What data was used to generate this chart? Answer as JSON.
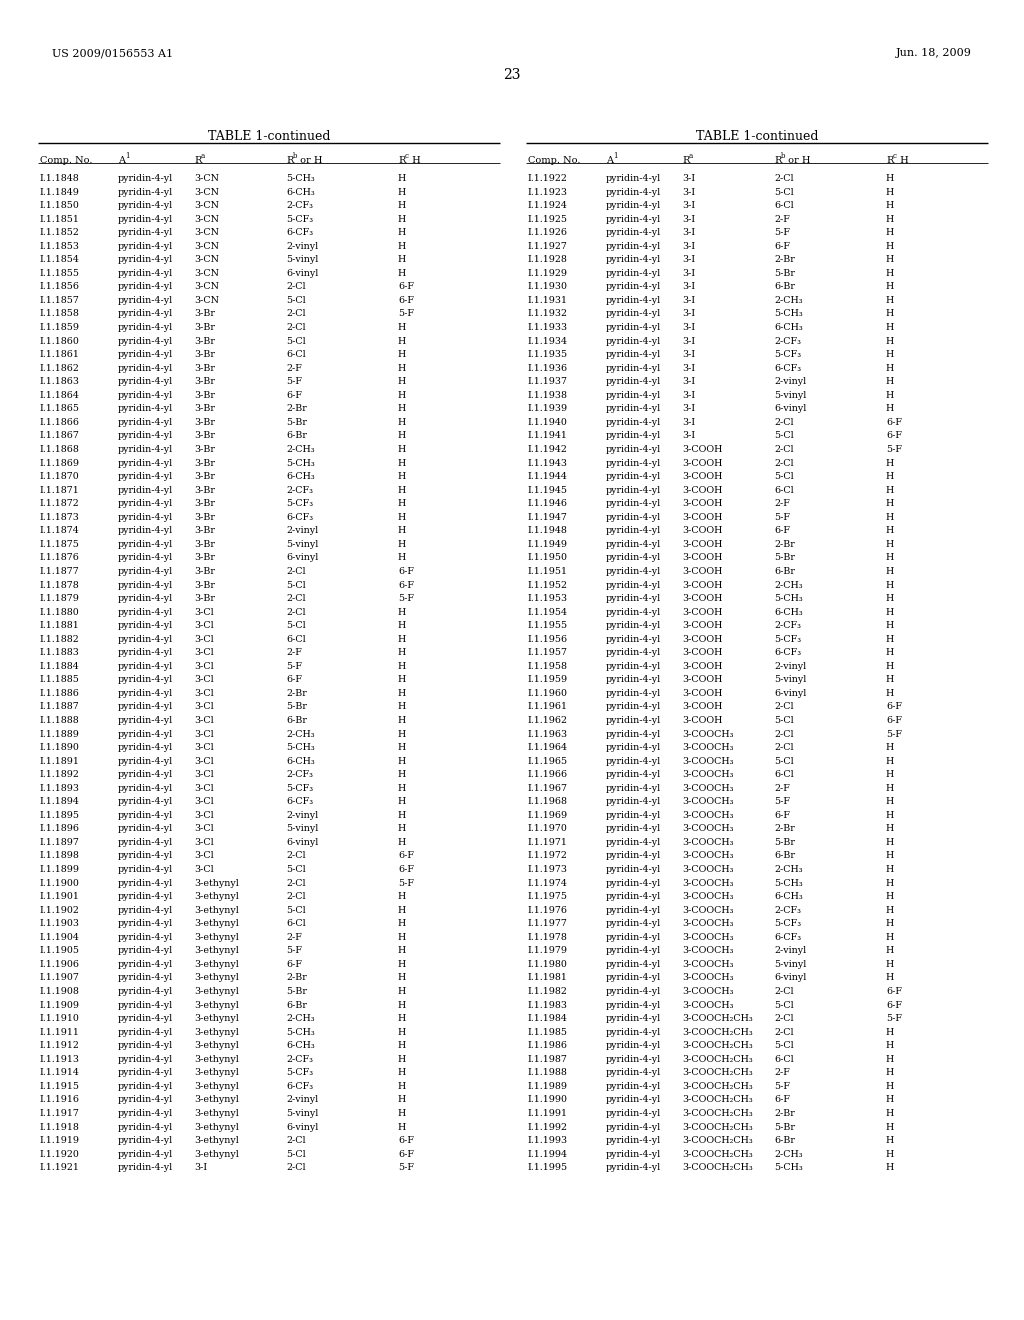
{
  "header_left": "US 2009/0156553 A1",
  "header_right": "Jun. 18, 2009",
  "page_number": "23",
  "table_title": "TABLE 1-continued",
  "background_color": "#ffffff",
  "left_table": [
    [
      "I.1.1848",
      "pyridin-4-yl",
      "3-CN",
      "5-CH₃",
      "H"
    ],
    [
      "I.1.1849",
      "pyridin-4-yl",
      "3-CN",
      "6-CH₃",
      "H"
    ],
    [
      "I.1.1850",
      "pyridin-4-yl",
      "3-CN",
      "2-CF₃",
      "H"
    ],
    [
      "I.1.1851",
      "pyridin-4-yl",
      "3-CN",
      "5-CF₃",
      "H"
    ],
    [
      "I.1.1852",
      "pyridin-4-yl",
      "3-CN",
      "6-CF₃",
      "H"
    ],
    [
      "I.1.1853",
      "pyridin-4-yl",
      "3-CN",
      "2-vinyl",
      "H"
    ],
    [
      "I.1.1854",
      "pyridin-4-yl",
      "3-CN",
      "5-vinyl",
      "H"
    ],
    [
      "I.1.1855",
      "pyridin-4-yl",
      "3-CN",
      "6-vinyl",
      "H"
    ],
    [
      "I.1.1856",
      "pyridin-4-yl",
      "3-CN",
      "2-Cl",
      "6-F"
    ],
    [
      "I.1.1857",
      "pyridin-4-yl",
      "3-CN",
      "5-Cl",
      "6-F"
    ],
    [
      "I.1.1858",
      "pyridin-4-yl",
      "3-Br",
      "2-Cl",
      "5-F"
    ],
    [
      "I.1.1859",
      "pyridin-4-yl",
      "3-Br",
      "2-Cl",
      "H"
    ],
    [
      "I.1.1860",
      "pyridin-4-yl",
      "3-Br",
      "5-Cl",
      "H"
    ],
    [
      "I.1.1861",
      "pyridin-4-yl",
      "3-Br",
      "6-Cl",
      "H"
    ],
    [
      "I.1.1862",
      "pyridin-4-yl",
      "3-Br",
      "2-F",
      "H"
    ],
    [
      "I.1.1863",
      "pyridin-4-yl",
      "3-Br",
      "5-F",
      "H"
    ],
    [
      "I.1.1864",
      "pyridin-4-yl",
      "3-Br",
      "6-F",
      "H"
    ],
    [
      "I.1.1865",
      "pyridin-4-yl",
      "3-Br",
      "2-Br",
      "H"
    ],
    [
      "I.1.1866",
      "pyridin-4-yl",
      "3-Br",
      "5-Br",
      "H"
    ],
    [
      "I.1.1867",
      "pyridin-4-yl",
      "3-Br",
      "6-Br",
      "H"
    ],
    [
      "I.1.1868",
      "pyridin-4-yl",
      "3-Br",
      "2-CH₃",
      "H"
    ],
    [
      "I.1.1869",
      "pyridin-4-yl",
      "3-Br",
      "5-CH₃",
      "H"
    ],
    [
      "I.1.1870",
      "pyridin-4-yl",
      "3-Br",
      "6-CH₃",
      "H"
    ],
    [
      "I.1.1871",
      "pyridin-4-yl",
      "3-Br",
      "2-CF₃",
      "H"
    ],
    [
      "I.1.1872",
      "pyridin-4-yl",
      "3-Br",
      "5-CF₃",
      "H"
    ],
    [
      "I.1.1873",
      "pyridin-4-yl",
      "3-Br",
      "6-CF₃",
      "H"
    ],
    [
      "I.1.1874",
      "pyridin-4-yl",
      "3-Br",
      "2-vinyl",
      "H"
    ],
    [
      "I.1.1875",
      "pyridin-4-yl",
      "3-Br",
      "5-vinyl",
      "H"
    ],
    [
      "I.1.1876",
      "pyridin-4-yl",
      "3-Br",
      "6-vinyl",
      "H"
    ],
    [
      "I.1.1877",
      "pyridin-4-yl",
      "3-Br",
      "2-Cl",
      "6-F"
    ],
    [
      "I.1.1878",
      "pyridin-4-yl",
      "3-Br",
      "5-Cl",
      "6-F"
    ],
    [
      "I.1.1879",
      "pyridin-4-yl",
      "3-Br",
      "2-Cl",
      "5-F"
    ],
    [
      "I.1.1880",
      "pyridin-4-yl",
      "3-Cl",
      "2-Cl",
      "H"
    ],
    [
      "I.1.1881",
      "pyridin-4-yl",
      "3-Cl",
      "5-Cl",
      "H"
    ],
    [
      "I.1.1882",
      "pyridin-4-yl",
      "3-Cl",
      "6-Cl",
      "H"
    ],
    [
      "I.1.1883",
      "pyridin-4-yl",
      "3-Cl",
      "2-F",
      "H"
    ],
    [
      "I.1.1884",
      "pyridin-4-yl",
      "3-Cl",
      "5-F",
      "H"
    ],
    [
      "I.1.1885",
      "pyridin-4-yl",
      "3-Cl",
      "6-F",
      "H"
    ],
    [
      "I.1.1886",
      "pyridin-4-yl",
      "3-Cl",
      "2-Br",
      "H"
    ],
    [
      "I.1.1887",
      "pyridin-4-yl",
      "3-Cl",
      "5-Br",
      "H"
    ],
    [
      "I.1.1888",
      "pyridin-4-yl",
      "3-Cl",
      "6-Br",
      "H"
    ],
    [
      "I.1.1889",
      "pyridin-4-yl",
      "3-Cl",
      "2-CH₃",
      "H"
    ],
    [
      "I.1.1890",
      "pyridin-4-yl",
      "3-Cl",
      "5-CH₃",
      "H"
    ],
    [
      "I.1.1891",
      "pyridin-4-yl",
      "3-Cl",
      "6-CH₃",
      "H"
    ],
    [
      "I.1.1892",
      "pyridin-4-yl",
      "3-Cl",
      "2-CF₃",
      "H"
    ],
    [
      "I.1.1893",
      "pyridin-4-yl",
      "3-Cl",
      "5-CF₃",
      "H"
    ],
    [
      "I.1.1894",
      "pyridin-4-yl",
      "3-Cl",
      "6-CF₃",
      "H"
    ],
    [
      "I.1.1895",
      "pyridin-4-yl",
      "3-Cl",
      "2-vinyl",
      "H"
    ],
    [
      "I.1.1896",
      "pyridin-4-yl",
      "3-Cl",
      "5-vinyl",
      "H"
    ],
    [
      "I.1.1897",
      "pyridin-4-yl",
      "3-Cl",
      "6-vinyl",
      "H"
    ],
    [
      "I.1.1898",
      "pyridin-4-yl",
      "3-Cl",
      "2-Cl",
      "6-F"
    ],
    [
      "I.1.1899",
      "pyridin-4-yl",
      "3-Cl",
      "5-Cl",
      "6-F"
    ],
    [
      "I.1.1900",
      "pyridin-4-yl",
      "3-ethynyl",
      "2-Cl",
      "5-F"
    ],
    [
      "I.1.1901",
      "pyridin-4-yl",
      "3-ethynyl",
      "2-Cl",
      "H"
    ],
    [
      "I.1.1902",
      "pyridin-4-yl",
      "3-ethynyl",
      "5-Cl",
      "H"
    ],
    [
      "I.1.1903",
      "pyridin-4-yl",
      "3-ethynyl",
      "6-Cl",
      "H"
    ],
    [
      "I.1.1904",
      "pyridin-4-yl",
      "3-ethynyl",
      "2-F",
      "H"
    ],
    [
      "I.1.1905",
      "pyridin-4-yl",
      "3-ethynyl",
      "5-F",
      "H"
    ],
    [
      "I.1.1906",
      "pyridin-4-yl",
      "3-ethynyl",
      "6-F",
      "H"
    ],
    [
      "I.1.1907",
      "pyridin-4-yl",
      "3-ethynyl",
      "2-Br",
      "H"
    ],
    [
      "I.1.1908",
      "pyridin-4-yl",
      "3-ethynyl",
      "5-Br",
      "H"
    ],
    [
      "I.1.1909",
      "pyridin-4-yl",
      "3-ethynyl",
      "6-Br",
      "H"
    ],
    [
      "I.1.1910",
      "pyridin-4-yl",
      "3-ethynyl",
      "2-CH₃",
      "H"
    ],
    [
      "I.1.1911",
      "pyridin-4-yl",
      "3-ethynyl",
      "5-CH₃",
      "H"
    ],
    [
      "I.1.1912",
      "pyridin-4-yl",
      "3-ethynyl",
      "6-CH₃",
      "H"
    ],
    [
      "I.1.1913",
      "pyridin-4-yl",
      "3-ethynyl",
      "2-CF₃",
      "H"
    ],
    [
      "I.1.1914",
      "pyridin-4-yl",
      "3-ethynyl",
      "5-CF₃",
      "H"
    ],
    [
      "I.1.1915",
      "pyridin-4-yl",
      "3-ethynyl",
      "6-CF₃",
      "H"
    ],
    [
      "I.1.1916",
      "pyridin-4-yl",
      "3-ethynyl",
      "2-vinyl",
      "H"
    ],
    [
      "I.1.1917",
      "pyridin-4-yl",
      "3-ethynyl",
      "5-vinyl",
      "H"
    ],
    [
      "I.1.1918",
      "pyridin-4-yl",
      "3-ethynyl",
      "6-vinyl",
      "H"
    ],
    [
      "I.1.1919",
      "pyridin-4-yl",
      "3-ethynyl",
      "2-Cl",
      "6-F"
    ],
    [
      "I.1.1920",
      "pyridin-4-yl",
      "3-ethynyl",
      "5-Cl",
      "6-F"
    ],
    [
      "I.1.1921",
      "pyridin-4-yl",
      "3-I",
      "2-Cl",
      "5-F"
    ]
  ],
  "right_table": [
    [
      "I.1.1922",
      "pyridin-4-yl",
      "3-I",
      "2-Cl",
      "H"
    ],
    [
      "I.1.1923",
      "pyridin-4-yl",
      "3-I",
      "5-Cl",
      "H"
    ],
    [
      "I.1.1924",
      "pyridin-4-yl",
      "3-I",
      "6-Cl",
      "H"
    ],
    [
      "I.1.1925",
      "pyridin-4-yl",
      "3-I",
      "2-F",
      "H"
    ],
    [
      "I.1.1926",
      "pyridin-4-yl",
      "3-I",
      "5-F",
      "H"
    ],
    [
      "I.1.1927",
      "pyridin-4-yl",
      "3-I",
      "6-F",
      "H"
    ],
    [
      "I.1.1928",
      "pyridin-4-yl",
      "3-I",
      "2-Br",
      "H"
    ],
    [
      "I.1.1929",
      "pyridin-4-yl",
      "3-I",
      "5-Br",
      "H"
    ],
    [
      "I.1.1930",
      "pyridin-4-yl",
      "3-I",
      "6-Br",
      "H"
    ],
    [
      "I.1.1931",
      "pyridin-4-yl",
      "3-I",
      "2-CH₃",
      "H"
    ],
    [
      "I.1.1932",
      "pyridin-4-yl",
      "3-I",
      "5-CH₃",
      "H"
    ],
    [
      "I.1.1933",
      "pyridin-4-yl",
      "3-I",
      "6-CH₃",
      "H"
    ],
    [
      "I.1.1934",
      "pyridin-4-yl",
      "3-I",
      "2-CF₃",
      "H"
    ],
    [
      "I.1.1935",
      "pyridin-4-yl",
      "3-I",
      "5-CF₃",
      "H"
    ],
    [
      "I.1.1936",
      "pyridin-4-yl",
      "3-I",
      "6-CF₃",
      "H"
    ],
    [
      "I.1.1937",
      "pyridin-4-yl",
      "3-I",
      "2-vinyl",
      "H"
    ],
    [
      "I.1.1938",
      "pyridin-4-yl",
      "3-I",
      "5-vinyl",
      "H"
    ],
    [
      "I.1.1939",
      "pyridin-4-yl",
      "3-I",
      "6-vinyl",
      "H"
    ],
    [
      "I.1.1940",
      "pyridin-4-yl",
      "3-I",
      "2-Cl",
      "6-F"
    ],
    [
      "I.1.1941",
      "pyridin-4-yl",
      "3-I",
      "5-Cl",
      "6-F"
    ],
    [
      "I.1.1942",
      "pyridin-4-yl",
      "3-COOH",
      "2-Cl",
      "5-F"
    ],
    [
      "I.1.1943",
      "pyridin-4-yl",
      "3-COOH",
      "2-Cl",
      "H"
    ],
    [
      "I.1.1944",
      "pyridin-4-yl",
      "3-COOH",
      "5-Cl",
      "H"
    ],
    [
      "I.1.1945",
      "pyridin-4-yl",
      "3-COOH",
      "6-Cl",
      "H"
    ],
    [
      "I.1.1946",
      "pyridin-4-yl",
      "3-COOH",
      "2-F",
      "H"
    ],
    [
      "I.1.1947",
      "pyridin-4-yl",
      "3-COOH",
      "5-F",
      "H"
    ],
    [
      "I.1.1948",
      "pyridin-4-yl",
      "3-COOH",
      "6-F",
      "H"
    ],
    [
      "I.1.1949",
      "pyridin-4-yl",
      "3-COOH",
      "2-Br",
      "H"
    ],
    [
      "I.1.1950",
      "pyridin-4-yl",
      "3-COOH",
      "5-Br",
      "H"
    ],
    [
      "I.1.1951",
      "pyridin-4-yl",
      "3-COOH",
      "6-Br",
      "H"
    ],
    [
      "I.1.1952",
      "pyridin-4-yl",
      "3-COOH",
      "2-CH₃",
      "H"
    ],
    [
      "I.1.1953",
      "pyridin-4-yl",
      "3-COOH",
      "5-CH₃",
      "H"
    ],
    [
      "I.1.1954",
      "pyridin-4-yl",
      "3-COOH",
      "6-CH₃",
      "H"
    ],
    [
      "I.1.1955",
      "pyridin-4-yl",
      "3-COOH",
      "2-CF₃",
      "H"
    ],
    [
      "I.1.1956",
      "pyridin-4-yl",
      "3-COOH",
      "5-CF₃",
      "H"
    ],
    [
      "I.1.1957",
      "pyridin-4-yl",
      "3-COOH",
      "6-CF₃",
      "H"
    ],
    [
      "I.1.1958",
      "pyridin-4-yl",
      "3-COOH",
      "2-vinyl",
      "H"
    ],
    [
      "I.1.1959",
      "pyridin-4-yl",
      "3-COOH",
      "5-vinyl",
      "H"
    ],
    [
      "I.1.1960",
      "pyridin-4-yl",
      "3-COOH",
      "6-vinyl",
      "H"
    ],
    [
      "I.1.1961",
      "pyridin-4-yl",
      "3-COOH",
      "2-Cl",
      "6-F"
    ],
    [
      "I.1.1962",
      "pyridin-4-yl",
      "3-COOH",
      "5-Cl",
      "6-F"
    ],
    [
      "I.1.1963",
      "pyridin-4-yl",
      "3-COOCH₃",
      "2-Cl",
      "5-F"
    ],
    [
      "I.1.1964",
      "pyridin-4-yl",
      "3-COOCH₃",
      "2-Cl",
      "H"
    ],
    [
      "I.1.1965",
      "pyridin-4-yl",
      "3-COOCH₃",
      "5-Cl",
      "H"
    ],
    [
      "I.1.1966",
      "pyridin-4-yl",
      "3-COOCH₃",
      "6-Cl",
      "H"
    ],
    [
      "I.1.1967",
      "pyridin-4-yl",
      "3-COOCH₃",
      "2-F",
      "H"
    ],
    [
      "I.1.1968",
      "pyridin-4-yl",
      "3-COOCH₃",
      "5-F",
      "H"
    ],
    [
      "I.1.1969",
      "pyridin-4-yl",
      "3-COOCH₃",
      "6-F",
      "H"
    ],
    [
      "I.1.1970",
      "pyridin-4-yl",
      "3-COOCH₃",
      "2-Br",
      "H"
    ],
    [
      "I.1.1971",
      "pyridin-4-yl",
      "3-COOCH₃",
      "5-Br",
      "H"
    ],
    [
      "I.1.1972",
      "pyridin-4-yl",
      "3-COOCH₃",
      "6-Br",
      "H"
    ],
    [
      "I.1.1973",
      "pyridin-4-yl",
      "3-COOCH₃",
      "2-CH₃",
      "H"
    ],
    [
      "I.1.1974",
      "pyridin-4-yl",
      "3-COOCH₃",
      "5-CH₃",
      "H"
    ],
    [
      "I.1.1975",
      "pyridin-4-yl",
      "3-COOCH₃",
      "6-CH₃",
      "H"
    ],
    [
      "I.1.1976",
      "pyridin-4-yl",
      "3-COOCH₃",
      "2-CF₃",
      "H"
    ],
    [
      "I.1.1977",
      "pyridin-4-yl",
      "3-COOCH₃",
      "5-CF₃",
      "H"
    ],
    [
      "I.1.1978",
      "pyridin-4-yl",
      "3-COOCH₃",
      "6-CF₃",
      "H"
    ],
    [
      "I.1.1979",
      "pyridin-4-yl",
      "3-COOCH₃",
      "2-vinyl",
      "H"
    ],
    [
      "I.1.1980",
      "pyridin-4-yl",
      "3-COOCH₃",
      "5-vinyl",
      "H"
    ],
    [
      "I.1.1981",
      "pyridin-4-yl",
      "3-COOCH₃",
      "6-vinyl",
      "H"
    ],
    [
      "I.1.1982",
      "pyridin-4-yl",
      "3-COOCH₃",
      "2-Cl",
      "6-F"
    ],
    [
      "I.1.1983",
      "pyridin-4-yl",
      "3-COOCH₃",
      "5-Cl",
      "6-F"
    ],
    [
      "I.1.1984",
      "pyridin-4-yl",
      "3-COOCH₂CH₃",
      "2-Cl",
      "5-F"
    ],
    [
      "I.1.1985",
      "pyridin-4-yl",
      "3-COOCH₂CH₃",
      "2-Cl",
      "H"
    ],
    [
      "I.1.1986",
      "pyridin-4-yl",
      "3-COOCH₂CH₃",
      "5-Cl",
      "H"
    ],
    [
      "I.1.1987",
      "pyridin-4-yl",
      "3-COOCH₂CH₃",
      "6-Cl",
      "H"
    ],
    [
      "I.1.1988",
      "pyridin-4-yl",
      "3-COOCH₂CH₃",
      "2-F",
      "H"
    ],
    [
      "I.1.1989",
      "pyridin-4-yl",
      "3-COOCH₂CH₃",
      "5-F",
      "H"
    ],
    [
      "I.1.1990",
      "pyridin-4-yl",
      "3-COOCH₂CH₃",
      "6-F",
      "H"
    ],
    [
      "I.1.1991",
      "pyridin-4-yl",
      "3-COOCH₂CH₃",
      "2-Br",
      "H"
    ],
    [
      "I.1.1992",
      "pyridin-4-yl",
      "3-COOCH₂CH₃",
      "5-Br",
      "H"
    ],
    [
      "I.1.1993",
      "pyridin-4-yl",
      "3-COOCH₂CH₃",
      "6-Br",
      "H"
    ],
    [
      "I.1.1994",
      "pyridin-4-yl",
      "3-COOCH₂CH₃",
      "2-CH₃",
      "H"
    ],
    [
      "I.1.1995",
      "pyridin-4-yl",
      "3-COOCH₂CH₃",
      "5-CH₃",
      "H"
    ]
  ]
}
